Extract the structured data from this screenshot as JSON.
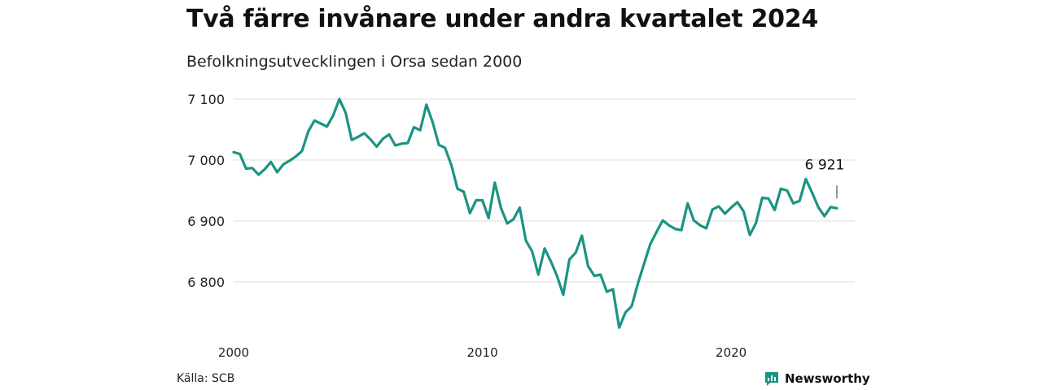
{
  "title": "Två färre invånare under andra kvartalet 2024",
  "subtitle": "Befolkningsutvecklingen i Orsa sedan 2000",
  "source": "Källa: SCB",
  "brand": {
    "name": "Newsworthy",
    "icon": "newsworthy-logo-icon",
    "color": "#1a9484"
  },
  "chart_data": {
    "type": "line",
    "title": "Två färre invånare under andra kvartalet 2024",
    "subtitle": "Befolkningsutvecklingen i Orsa sedan 2000",
    "xlabel": "",
    "ylabel": "",
    "xlim": [
      2000,
      2024.5
    ],
    "ylim": [
      6720,
      7120
    ],
    "x_ticks": [
      2000,
      2010,
      2020
    ],
    "x_tick_labels": [
      "2000",
      "2010",
      "2020"
    ],
    "y_ticks": [
      6800,
      6900,
      7000,
      7100
    ],
    "y_tick_labels": [
      "6 800",
      "6 900",
      "7 000",
      "7 100"
    ],
    "grid": "horizontal",
    "line_color": "#1a9484",
    "series": [
      {
        "x": [
          2000.0,
          2000.25,
          2000.5,
          2000.75,
          2001.0,
          2001.25,
          2001.5,
          2001.75,
          2002.0,
          2002.25,
          2002.5,
          2002.75,
          2003.0,
          2003.25,
          2003.5,
          2003.75,
          2004.0,
          2004.25,
          2004.5,
          2004.75,
          2005.0,
          2005.25,
          2005.5,
          2005.75,
          2006.0,
          2006.25,
          2006.5,
          2006.75,
          2007.0,
          2007.25,
          2007.5,
          2007.75,
          2008.0,
          2008.25,
          2008.5,
          2008.75,
          2009.0,
          2009.25,
          2009.5,
          2009.75,
          2010.0,
          2010.25,
          2010.5,
          2010.75,
          2011.0,
          2011.25,
          2011.5,
          2011.75,
          2012.0,
          2012.25,
          2012.5,
          2012.75,
          2013.0,
          2013.25,
          2013.5,
          2013.75,
          2014.0,
          2014.25,
          2014.5,
          2014.75,
          2015.0,
          2015.25,
          2015.5,
          2015.75,
          2016.0,
          2016.25,
          2016.5,
          2016.75,
          2017.0,
          2017.25,
          2017.5,
          2017.75,
          2018.0,
          2018.25,
          2018.5,
          2018.75,
          2019.0,
          2019.25,
          2019.5,
          2019.75,
          2020.0,
          2020.25,
          2020.5,
          2020.75,
          2021.0,
          2021.25,
          2021.5,
          2021.75,
          2022.0,
          2022.25,
          2022.5,
          2022.75,
          2023.0,
          2023.25,
          2023.5,
          2023.75,
          2024.0,
          2024.25
        ],
        "values": [
          7013,
          7010,
          6986,
          6987,
          6976,
          6985,
          6997,
          6980,
          6993,
          6999,
          7006,
          7015,
          7047,
          7065,
          7060,
          7055,
          7073,
          7100,
          7078,
          7033,
          7038,
          7044,
          7034,
          7022,
          7035,
          7042,
          7024,
          7027,
          7028,
          7054,
          7049,
          7091,
          7062,
          7025,
          7020,
          6992,
          6953,
          6948,
          6913,
          6934,
          6934,
          6905,
          6963,
          6921,
          6896,
          6903,
          6922,
          6868,
          6850,
          6812,
          6855,
          6834,
          6810,
          6779,
          6837,
          6848,
          6876,
          6826,
          6810,
          6812,
          6784,
          6788,
          6725,
          6750,
          6760,
          6797,
          6830,
          6862,
          6882,
          6901,
          6893,
          6887,
          6885,
          6929,
          6901,
          6893,
          6888,
          6919,
          6924,
          6912,
          6922,
          6931,
          6916,
          6877,
          6897,
          6938,
          6937,
          6918,
          6953,
          6950,
          6929,
          6933,
          6969,
          6947,
          6923,
          6908,
          6923,
          6921
        ]
      }
    ],
    "annotation": {
      "x": 2024.25,
      "value": 6921,
      "label": "6 921"
    }
  }
}
